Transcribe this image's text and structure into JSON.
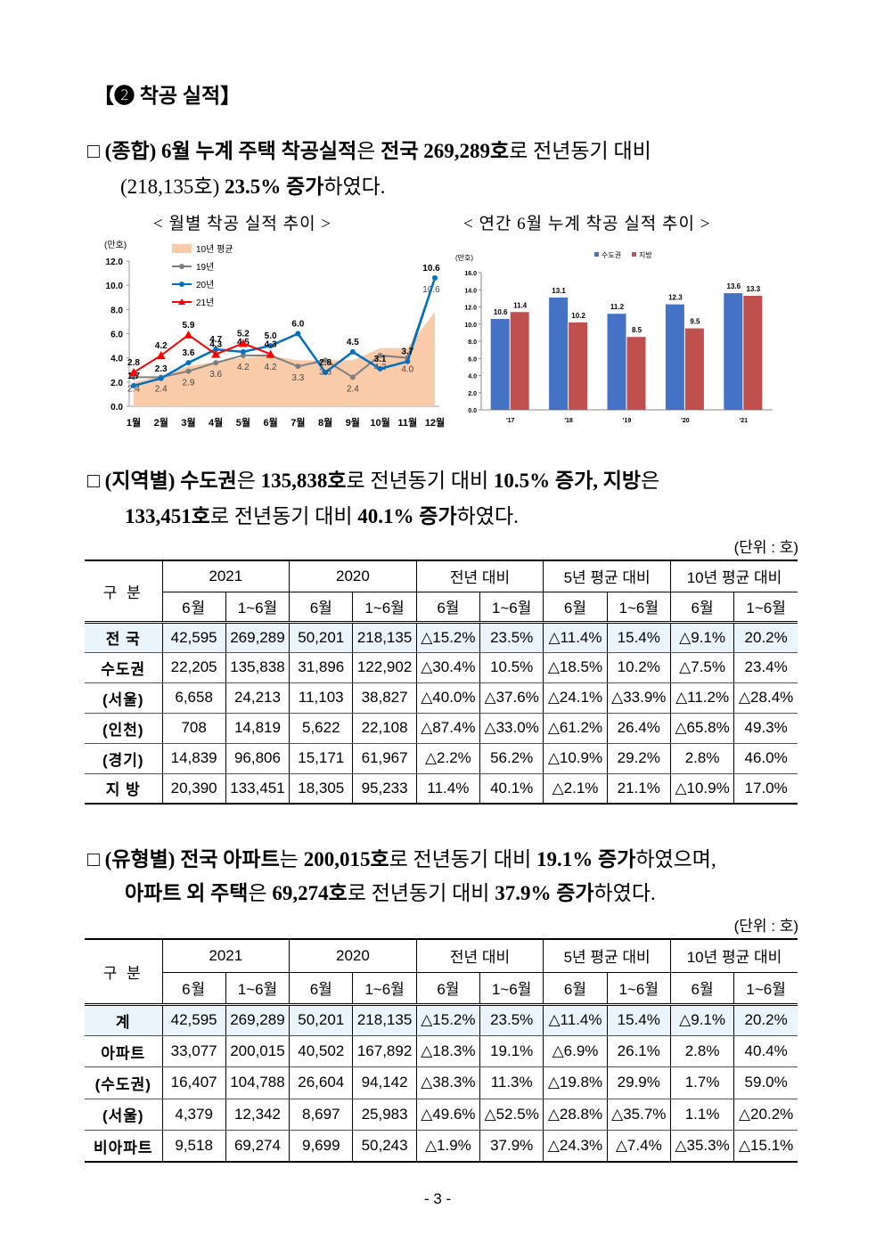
{
  "heading": "【❷ 착공 실적】",
  "paragraphs": [
    [
      [
        {
          "text": "□ ",
          "bold": false
        },
        {
          "text": "(종합) 6월 누계 주택 착공실적",
          "bold": true
        },
        {
          "text": "은 ",
          "bold": false
        },
        {
          "text": "전국 269,289호",
          "bold": true
        },
        {
          "text": "로 전년동기 대비",
          "bold": false
        }
      ],
      [
        {
          "text": "(218,135호) ",
          "bold": false
        },
        {
          "text": "23.5% 증가",
          "bold": true
        },
        {
          "text": "하였다.",
          "bold": false
        }
      ]
    ],
    [
      [
        {
          "text": "□ ",
          "bold": false
        },
        {
          "text": "(지역별) 수도권",
          "bold": true
        },
        {
          "text": "은 ",
          "bold": false
        },
        {
          "text": "135,838호",
          "bold": true
        },
        {
          "text": "로 전년동기 대비 ",
          "bold": false
        },
        {
          "text": "10.5% 증가, 지방",
          "bold": true
        },
        {
          "text": "은",
          "bold": false
        }
      ],
      [
        {
          "text": "133,451호",
          "bold": true
        },
        {
          "text": "로 전년동기 대비 ",
          "bold": false
        },
        {
          "text": "40.1% 증가",
          "bold": true
        },
        {
          "text": "하였다.",
          "bold": false
        }
      ]
    ],
    [
      [
        {
          "text": "□ ",
          "bold": false
        },
        {
          "text": "(유형별) 전국 아파트",
          "bold": true
        },
        {
          "text": "는 ",
          "bold": false
        },
        {
          "text": "200,015호",
          "bold": true
        },
        {
          "text": "로 전년동기 대비 ",
          "bold": false
        },
        {
          "text": "19.1% 증가",
          "bold": true
        },
        {
          "text": "하였으며,",
          "bold": false
        }
      ],
      [
        {
          "text": "아파트 외 주택",
          "bold": true
        },
        {
          "text": "은 ",
          "bold": false
        },
        {
          "text": "69,274호",
          "bold": true
        },
        {
          "text": "로 전년동기 대비 ",
          "bold": false
        },
        {
          "text": "37.9% 증가",
          "bold": true
        },
        {
          "text": "하였다.",
          "bold": false
        }
      ]
    ]
  ],
  "chart_data": [
    {
      "type": "line",
      "title": "< 월별 착공 실적 추이 >",
      "y_label": "(만호)",
      "categories": [
        "1월",
        "2월",
        "3월",
        "4월",
        "5월",
        "6월",
        "7월",
        "8월",
        "9월",
        "10월",
        "11월",
        "12월"
      ],
      "ylim": [
        0,
        12
      ],
      "yticks": [
        {
          "value": 0,
          "label": "0.0"
        },
        {
          "value": 2,
          "label": "2.0"
        },
        {
          "value": 4,
          "label": "4.0"
        },
        {
          "value": 6,
          "label": "6.0"
        },
        {
          "value": 8,
          "label": "8.0"
        },
        {
          "value": 10,
          "label": "10.0"
        },
        {
          "value": 12,
          "label": "12.0"
        }
      ],
      "series": [
        {
          "name": "10년 평균",
          "style": "area",
          "color": "#f9cba9",
          "values": [
            2.0,
            2.5,
            3.3,
            3.7,
            4.0,
            4.2,
            3.8,
            3.8,
            3.8,
            4.8,
            4.8,
            7.8
          ]
        },
        {
          "name": "19년",
          "style": "line",
          "marker": "circle",
          "color": "#7f7f7f",
          "values": [
            2.4,
            2.4,
            2.9,
            3.6,
            4.2,
            4.2,
            3.3,
            3.8,
            2.4,
            4.2,
            4.0,
            10.6
          ],
          "value_labels": [
            "2.4",
            "2.4",
            "2.9",
            "3.6",
            "4.2",
            "4.2",
            "3.3",
            "3.8",
            "2.4",
            "4.2",
            "4.0",
            "10.6"
          ]
        },
        {
          "name": "20년",
          "style": "line",
          "marker": "circle",
          "color": "#0070c0",
          "values": [
            1.7,
            2.3,
            3.6,
            4.7,
            4.5,
            5.0,
            6.0,
            2.8,
            4.5,
            3.1,
            3.7,
            10.6
          ],
          "value_labels": [
            "1.7",
            "2.3",
            "3.6",
            "4.7",
            "4.5",
            "5.0",
            "6.0",
            "2.8",
            "4.5",
            "3.1",
            "3.7",
            "10.6"
          ]
        },
        {
          "name": "21년",
          "style": "line",
          "marker": "triangle",
          "color": "#ff0000",
          "values": [
            2.8,
            4.2,
            5.9,
            4.3,
            5.2,
            4.3,
            null,
            null,
            null,
            null,
            null,
            null
          ],
          "value_labels": [
            "2.8",
            "4.2",
            "5.9",
            "4.3",
            "5.2",
            "4.3",
            null,
            null,
            null,
            null,
            null,
            null
          ]
        }
      ]
    },
    {
      "type": "bar",
      "title": "< 연간 6월 누계 착공 실적 추이 >",
      "y_label": "(만호)",
      "categories": [
        "'17",
        "'18",
        "'19",
        "'20",
        "'21"
      ],
      "ylim": [
        0,
        16
      ],
      "yticks": [
        {
          "value": 0,
          "label": "0.0"
        },
        {
          "value": 2,
          "label": "2.0"
        },
        {
          "value": 4,
          "label": "4.0"
        },
        {
          "value": 6,
          "label": "6.0"
        },
        {
          "value": 8,
          "label": "8.0"
        },
        {
          "value": 10,
          "label": "10.0"
        },
        {
          "value": 12,
          "label": "12.0"
        },
        {
          "value": 14,
          "label": "14.0"
        },
        {
          "value": 16,
          "label": "16.0"
        }
      ],
      "series": [
        {
          "name": "수도권",
          "color": "#4472c4",
          "values": [
            10.6,
            13.1,
            11.2,
            12.3,
            13.6
          ]
        },
        {
          "name": "지방",
          "color": "#c0504d",
          "values": [
            11.4,
            10.2,
            8.5,
            9.5,
            13.3
          ]
        }
      ]
    }
  ],
  "tables": [
    {
      "unit": "(단위 : 호)",
      "corner": "구 분",
      "groups": [
        "2021",
        "2020",
        "전년 대비",
        "5년 평균 대비",
        "10년 평균 대비"
      ],
      "sub": [
        "6월",
        "1~6월"
      ],
      "rows": [
        [
          "전 국",
          "42,595",
          "269,289",
          "50,201",
          "218,135",
          "△15.2%",
          "23.5%",
          "△11.4%",
          "15.4%",
          "△9.1%",
          "20.2%"
        ],
        [
          "수도권",
          "22,205",
          "135,838",
          "31,896",
          "122,902",
          "△30.4%",
          "10.5%",
          "△18.5%",
          "10.2%",
          "△7.5%",
          "23.4%"
        ],
        [
          "(서울)",
          "6,658",
          "24,213",
          "11,103",
          "38,827",
          "△40.0%",
          "△37.6%",
          "△24.1%",
          "△33.9%",
          "△11.2%",
          "△28.4%"
        ],
        [
          "(인천)",
          "708",
          "14,819",
          "5,622",
          "22,108",
          "△87.4%",
          "△33.0%",
          "△61.2%",
          "26.4%",
          "△65.8%",
          "49.3%"
        ],
        [
          "(경기)",
          "14,839",
          "96,806",
          "15,171",
          "61,967",
          "△2.2%",
          "56.2%",
          "△10.9%",
          "29.2%",
          "2.8%",
          "46.0%"
        ],
        [
          "지 방",
          "20,390",
          "133,451",
          "18,305",
          "95,233",
          "11.4%",
          "40.1%",
          "△2.1%",
          "21.1%",
          "△10.9%",
          "17.0%"
        ]
      ]
    },
    {
      "unit": "(단위 : 호)",
      "corner": "구 분",
      "groups": [
        "2021",
        "2020",
        "전년 대비",
        "5년 평균 대비",
        "10년 평균 대비"
      ],
      "sub": [
        "6월",
        "1~6월"
      ],
      "rows": [
        [
          "계",
          "42,595",
          "269,289",
          "50,201",
          "218,135",
          "△15.2%",
          "23.5%",
          "△11.4%",
          "15.4%",
          "△9.1%",
          "20.2%"
        ],
        [
          "아파트",
          "33,077",
          "200,015",
          "40,502",
          "167,892",
          "△18.3%",
          "19.1%",
          "△6.9%",
          "26.1%",
          "2.8%",
          "40.4%"
        ],
        [
          "(수도권)",
          "16,407",
          "104,788",
          "26,604",
          "94,142",
          "△38.3%",
          "11.3%",
          "△19.8%",
          "29.9%",
          "1.7%",
          "59.0%"
        ],
        [
          "(서울)",
          "4,379",
          "12,342",
          "8,697",
          "25,983",
          "△49.6%",
          "△52.5%",
          "△28.8%",
          "△35.7%",
          "1.1%",
          "△20.2%"
        ],
        [
          "비아파트",
          "9,518",
          "69,274",
          "9,699",
          "50,243",
          "△1.9%",
          "37.9%",
          "△24.3%",
          "△7.4%",
          "△35.3%",
          "△15.1%"
        ]
      ]
    }
  ],
  "page_number": "- 3 -"
}
